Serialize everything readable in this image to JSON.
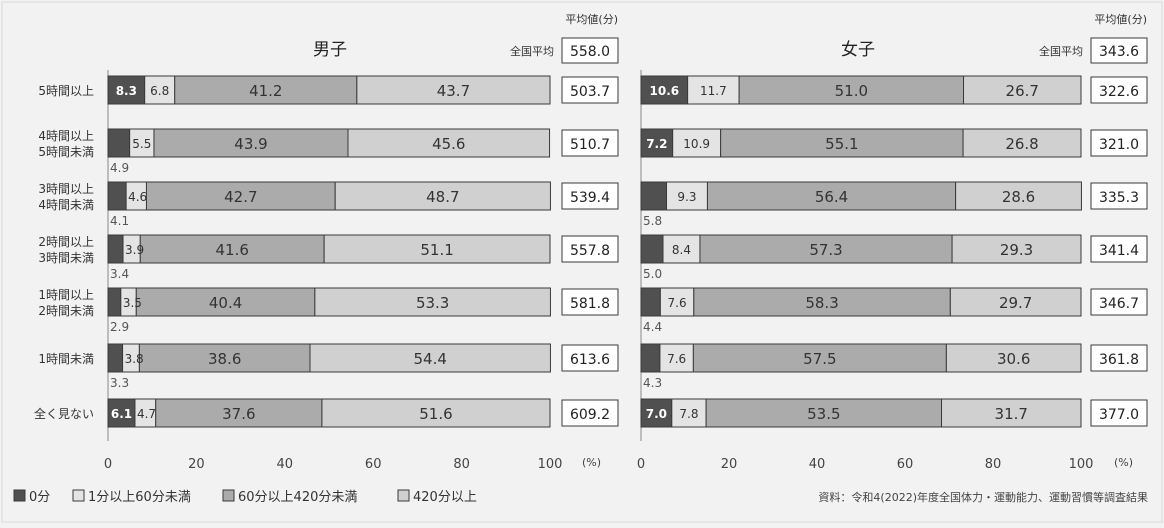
{
  "chart_data": [
    {
      "type": "bar",
      "orientation": "horizontal",
      "stacked": true,
      "title": "男子",
      "categories": [
        "5時間以上",
        "4時間以上5時間未満",
        "3時間以上4時間未満",
        "2時間以上3時間未満",
        "1時間以上2時間未満",
        "1時間未満",
        "全く見ない"
      ],
      "series": [
        {
          "name": "0分",
          "values": [
            8.3,
            4.9,
            4.1,
            3.4,
            2.9,
            3.3,
            6.1
          ]
        },
        {
          "name": "1分以上60分未満",
          "values": [
            6.8,
            5.5,
            4.6,
            3.9,
            3.5,
            3.8,
            4.7
          ]
        },
        {
          "name": "60分以上420分未満",
          "values": [
            41.2,
            43.9,
            42.7,
            41.6,
            40.4,
            38.6,
            37.6
          ]
        },
        {
          "name": "420分以上",
          "values": [
            43.7,
            45.6,
            48.7,
            51.1,
            53.3,
            54.4,
            51.6
          ]
        }
      ],
      "avg_header": "平均値(分)",
      "national_label": "全国平均",
      "national_avg": "558.0",
      "averages": [
        "503.7",
        "510.7",
        "539.4",
        "557.8",
        "581.8",
        "613.6",
        "609.2"
      ],
      "xlim": [
        0,
        100
      ],
      "xticks": [
        "0",
        "20",
        "40",
        "60",
        "80",
        "100"
      ],
      "xunit": "(%)"
    },
    {
      "type": "bar",
      "orientation": "horizontal",
      "stacked": true,
      "title": "女子",
      "categories": [
        "5時間以上",
        "4時間以上5時間未満",
        "3時間以上4時間未満",
        "2時間以上3時間未満",
        "1時間以上2時間未満",
        "1時間未満",
        "全く見ない"
      ],
      "series": [
        {
          "name": "0分",
          "values": [
            10.6,
            7.2,
            5.8,
            5.0,
            4.4,
            4.3,
            7.0
          ]
        },
        {
          "name": "1分以上60分未満",
          "values": [
            11.7,
            10.9,
            9.3,
            8.4,
            7.6,
            7.6,
            7.8
          ]
        },
        {
          "name": "60分以上420分未満",
          "values": [
            51.0,
            55.1,
            56.4,
            57.3,
            58.3,
            57.5,
            53.5
          ]
        },
        {
          "name": "420分以上",
          "values": [
            26.7,
            26.8,
            28.6,
            29.3,
            29.7,
            30.6,
            31.7
          ]
        }
      ],
      "avg_header": "平均値(分)",
      "national_label": "全国平均",
      "national_avg": "343.6",
      "averages": [
        "322.6",
        "321.0",
        "335.3",
        "341.4",
        "346.7",
        "361.8",
        "377.0"
      ],
      "xlim": [
        0,
        100
      ],
      "xticks": [
        "0",
        "20",
        "40",
        "60",
        "80",
        "100"
      ],
      "xunit": "(%)"
    }
  ],
  "category_lines": [
    [
      "5時間以上"
    ],
    [
      "4時間以上",
      "5時間未満"
    ],
    [
      "3時間以上",
      "4時間未満"
    ],
    [
      "2時間以上",
      "3時間未満"
    ],
    [
      "1時間以上",
      "2時間未満"
    ],
    [
      "1時間未満"
    ],
    [
      "全く見ない"
    ]
  ],
  "legend": [
    "0分",
    "1分以上60分未満",
    "60分以上420分未満",
    "420分以上"
  ],
  "source": "資料：令和4(2022)年度全国体力・運動能力、運動習慣等調査結果",
  "colors": {
    "s0": "#505050",
    "s1": "#e4e4e4",
    "s2": "#ababab",
    "s3": "#d0d0d0",
    "border": "#3a3a3a",
    "text": "#333333",
    "background": "#f2f2f2"
  }
}
